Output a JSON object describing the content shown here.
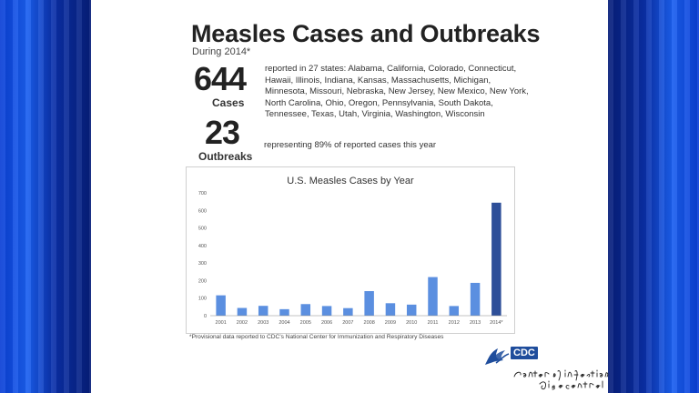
{
  "title": "Measles Cases and Outbreaks",
  "subtitle": "During 2014*",
  "stats": {
    "cases": {
      "number": "644",
      "label": "Cases",
      "description": "reported in 27 states: Alabama, California, Colorado, Connecticut, Hawaii, Illinois, Indiana, Kansas, Massachusetts, Michigan, Minnesota, Missouri, Nebraska, New Jersey, New Mexico, New York, North Carolina, Ohio, Oregon, Pennsylvania, South Dakota, Tennessee, Texas, Utah, Virginia, Washington, Wisconsin"
    },
    "outbreaks": {
      "number": "23",
      "label": "Outbreaks",
      "description": "representing 89% of reported cases this year"
    }
  },
  "chart_data": {
    "type": "bar",
    "title": "U.S. Measles Cases by Year",
    "categories": [
      "2001",
      "2002",
      "2003",
      "2004",
      "2005",
      "2006",
      "2007",
      "2008",
      "2009",
      "2010",
      "2011",
      "2012",
      "2013",
      "2014*"
    ],
    "values": [
      116,
      44,
      56,
      37,
      66,
      55,
      43,
      140,
      71,
      63,
      220,
      55,
      187,
      644
    ],
    "ylim": [
      0,
      700
    ],
    "yticks": [
      0,
      100,
      200,
      300,
      400,
      500,
      600,
      700
    ],
    "grid": false,
    "legend": "none",
    "colors": {
      "bar": "#5b8fe0",
      "highlight": "#2e4f99",
      "axis": "#888888"
    },
    "highlight_index": 13
  },
  "footnote": "*Provisional data reported to CDC's National Center for Immunization and Respiratory Diseases",
  "logo": {
    "text": "CDC"
  },
  "handwriting": "Center of Infectious Disease Control"
}
